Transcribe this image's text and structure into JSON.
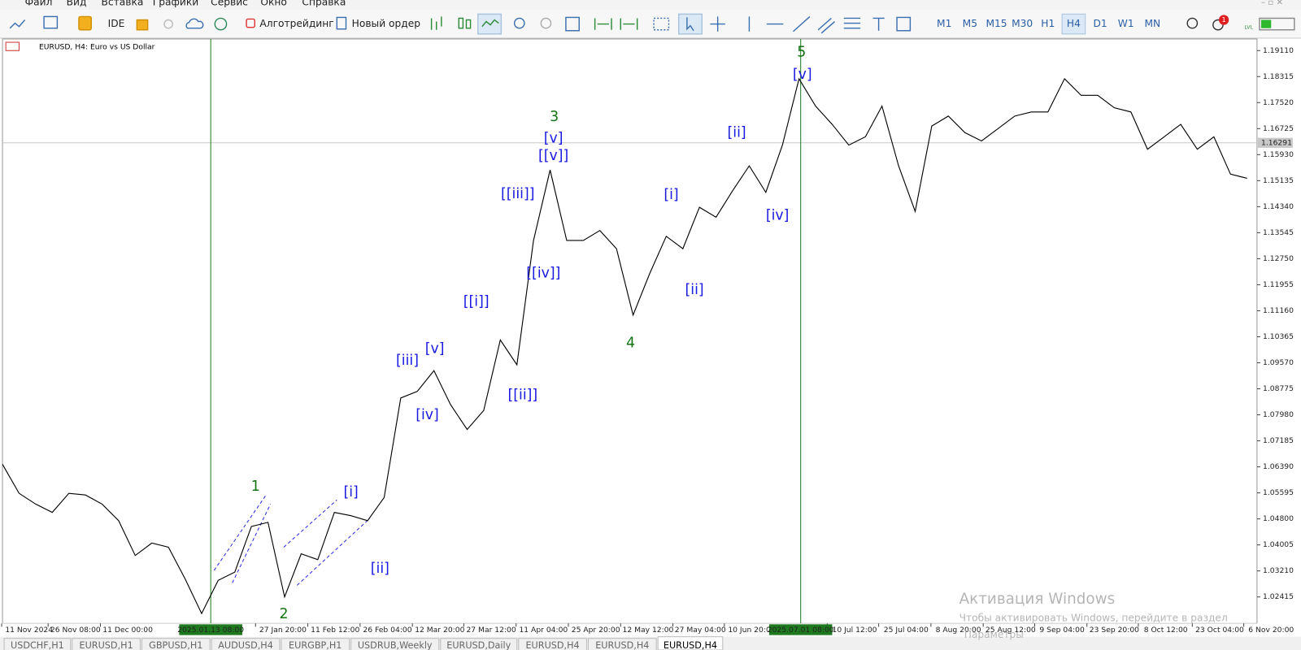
{
  "menu": [
    "Файл",
    "Вид",
    "Вставка",
    "Графики",
    "Сервис",
    "Окно",
    "Справка"
  ],
  "toolbar": {
    "ide": "IDE",
    "algotrading": "Алготрейдинг",
    "new_order": "Новый ордер",
    "timeframes": [
      "M1",
      "M5",
      "M15",
      "M30",
      "H1",
      "H4",
      "D1",
      "W1",
      "MN"
    ],
    "active_timeframe": "H4",
    "notifications": 1,
    "level_icon": "LVL"
  },
  "chart_data": {
    "type": "line",
    "title": "EURUSD, H4:  Euro vs US Dollar",
    "color": "#000000",
    "values": [
      1.06468,
      1.05581,
      1.05252,
      1.04998,
      1.05581,
      1.0553,
      1.05252,
      1.04745,
      1.03681,
      1.04061,
      1.03934,
      1.02972,
      1.01908,
      1.02921,
      1.03174,
      1.04568,
      1.04694,
      1.02414,
      1.03732,
      1.03554,
      1.04998,
      1.04897,
      1.04745,
      1.05454,
      1.08495,
      1.08697,
      1.09331,
      1.08292,
      1.07532,
      1.08115,
      1.10268,
      1.09508,
      1.13308,
      1.15462,
      1.13308,
      1.13308,
      1.13612,
      1.13055,
      1.11028,
      1.12295,
      1.13435,
      1.13055,
      1.14322,
      1.14018,
      1.14828,
      1.15588,
      1.14778,
      1.16222,
      1.18249,
      1.17413,
      1.16855,
      1.16222,
      1.16475,
      1.17413,
      1.15588,
      1.14195,
      1.16805,
      1.17109,
      1.16602,
      1.16348,
      1.16729,
      1.17109,
      1.17235,
      1.17235,
      1.18249,
      1.17742,
      1.17742,
      1.17362,
      1.17235,
      1.16095,
      1.16475,
      1.16855,
      1.16095,
      1.16475,
      1.15335,
      1.15208
    ],
    "ylim": [
      1.01604,
      1.19465
    ],
    "yticks": [
      {
        "value": 1.1911,
        "label": "1.19110"
      },
      {
        "value": 1.18315,
        "label": "1.18315"
      },
      {
        "value": 1.1752,
        "label": "1.17520"
      },
      {
        "value": 1.16725,
        "label": "1.16725"
      },
      {
        "value": 1.1593,
        "label": "1.15930"
      },
      {
        "value": 1.15135,
        "label": "1.15135"
      },
      {
        "value": 1.1434,
        "label": "1.14340"
      },
      {
        "value": 1.13545,
        "label": "1.13545"
      },
      {
        "value": 1.1275,
        "label": "1.12750"
      },
      {
        "value": 1.11955,
        "label": "1.11955"
      },
      {
        "value": 1.1116,
        "label": "1.11160"
      },
      {
        "value": 1.10365,
        "label": "1.10365"
      },
      {
        "value": 1.0957,
        "label": "1.09570"
      },
      {
        "value": 1.08775,
        "label": "1.08775"
      },
      {
        "value": 1.0798,
        "label": "1.07980"
      },
      {
        "value": 1.07185,
        "label": "1.07185"
      },
      {
        "value": 1.0639,
        "label": "1.06390"
      },
      {
        "value": 1.05595,
        "label": "1.05595"
      },
      {
        "value": 1.048,
        "label": "1.04800"
      },
      {
        "value": 1.04005,
        "label": "1.04005"
      },
      {
        "value": 1.0321,
        "label": "1.03210"
      },
      {
        "value": 1.02415,
        "label": "1.02415"
      }
    ],
    "current_price": {
      "value": 1.16291,
      "label": "1.16291"
    },
    "x_tick_labels": [
      "11 Nov 2024",
      "26 Nov 08:00",
      "11 Dec 00:00",
      "27 Jan 20:00",
      "11 Feb 12:00",
      "26 Feb 04:00",
      "12 Mar 20:00",
      "27 Mar 12:00",
      "11 Apr 04:00",
      "25 Apr 20:00",
      "12 May 12:00",
      "27 May 04:00",
      "10 Jun 20:00",
      "10 Jul 12:00",
      "25 Jul 04:00",
      "8 Aug 20:00",
      "25 Aug 12:00",
      "9 Sep 04:00",
      "23 Sep 20:00",
      "8 Oct 12:00",
      "23 Oct 04:00",
      "6 Nov 20:00"
    ],
    "vertical_lines": [
      "2025.01.13 08:00",
      "2025.07.01 08:00"
    ],
    "wave_labels": [
      {
        "text": "1",
        "color": "#137313"
      },
      {
        "text": "2",
        "color": "#137313"
      },
      {
        "text": "3",
        "color": "#137313"
      },
      {
        "text": "4",
        "color": "#137313"
      },
      {
        "text": "5",
        "color": "#137313"
      },
      {
        "text": "[i]",
        "color": "#1a1ae0"
      },
      {
        "text": "[ii]",
        "color": "#1a1ae0"
      },
      {
        "text": "[iii]",
        "color": "#1a1ae0"
      },
      {
        "text": "[iv]",
        "color": "#1a1ae0"
      },
      {
        "text": "[v]",
        "color": "#1a1ae0"
      },
      {
        "text": "[[i]]",
        "color": "#1a1ae0"
      },
      {
        "text": "[[ii]]",
        "color": "#1a1ae0"
      },
      {
        "text": "[[iii]]",
        "color": "#1a1ae0"
      },
      {
        "text": "[[iv]]",
        "color": "#1a1ae0"
      },
      {
        "text": "[v]",
        "color": "#1a1ae0"
      },
      {
        "text": "[[v]]",
        "color": "#1a1ae0"
      },
      {
        "text": "[i]",
        "color": "#1a1ae0"
      },
      {
        "text": "[ii]",
        "color": "#1a1ae0"
      },
      {
        "text": "[ii]",
        "color": "#1a1ae0"
      },
      {
        "text": "[iv]",
        "color": "#1a1ae0"
      },
      {
        "text": "[v]",
        "color": "#1a1ae0"
      }
    ]
  },
  "tabs": [
    "USDCHF,H1",
    "EURUSD,H1",
    "GBPUSD,H1",
    "AUDUSD,H4",
    "EURGBP,H1",
    "USDRUB,Weekly",
    "EURUSD,Daily",
    "EURUSD,H4",
    "EURUSD,H4",
    "EURUSD,H4"
  ],
  "active_tab": 9,
  "watermark": {
    "title": "Активация Windows",
    "text": "Чтобы активировать Windows, перейдите в раздел",
    "link": "Параметры"
  }
}
